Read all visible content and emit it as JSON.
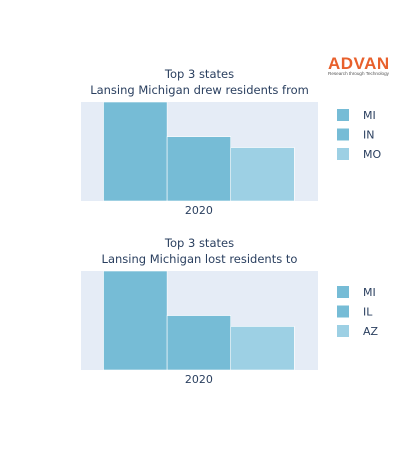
{
  "brand": {
    "name": "ADVAN",
    "tagline": "Research through Technology",
    "color": "#e8602c"
  },
  "plot_background": "#e5ecf6",
  "chart_data": [
    {
      "type": "bar",
      "title": "Top 3 states\nLansing Michigan drew residents from",
      "x": "2020",
      "xlabel": "",
      "ylabel": "",
      "y_tick_labels_shown": false,
      "grid": false,
      "legend_position": "right",
      "ylim": [
        0,
        100
      ],
      "series": [
        {
          "name": "MI",
          "values": [
            100
          ],
          "color": "#76bcd6"
        },
        {
          "name": "IN",
          "values": [
            65
          ],
          "color": "#76bcd6"
        },
        {
          "name": "MO",
          "values": [
            54
          ],
          "color": "#9dd0e4"
        }
      ]
    },
    {
      "type": "bar",
      "title": "Top 3 states\nLansing Michigan lost residents to",
      "x": "2020",
      "xlabel": "",
      "ylabel": "",
      "y_tick_labels_shown": false,
      "grid": false,
      "legend_position": "right",
      "ylim": [
        0,
        100
      ],
      "series": [
        {
          "name": "MI",
          "values": [
            100
          ],
          "color": "#76bcd6"
        },
        {
          "name": "IL",
          "values": [
            55
          ],
          "color": "#76bcd6"
        },
        {
          "name": "AZ",
          "values": [
            44
          ],
          "color": "#9dd0e4"
        }
      ]
    }
  ]
}
